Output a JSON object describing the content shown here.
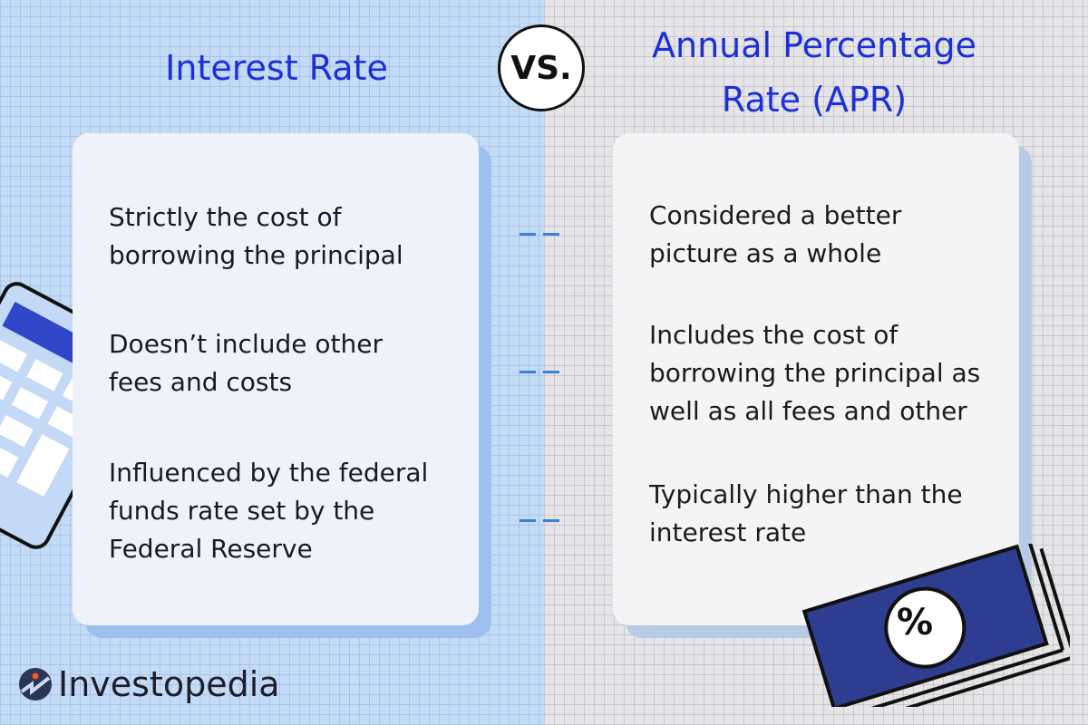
{
  "left": {
    "title": "Interest Rate",
    "points": [
      "Strictly the cost of\nborrowing the principal",
      "Doesn’t include other\nfees and costs",
      "Influenced by the federal\nfunds rate set by the\nFederal Reserve"
    ]
  },
  "vs_label": "VS.",
  "right": {
    "title_line1": "Annual Percentage",
    "title_line2": "Rate (APR)",
    "points": [
      "Considered a better\npicture as a whole",
      "Includes the cost of\nborrowing the principal as\nwell as all fees and other",
      "Typically higher than the\ninterest rate"
    ]
  },
  "calculator_display": "$$$.$$",
  "bill_symbol": "%",
  "brand": "Investopedia",
  "colors": {
    "title": "#1c2fd8",
    "left_bg": "#c4dbf5",
    "right_bg": "#e5e4e7",
    "dash": "#3b7fd6",
    "bill": "#2e3d8f"
  }
}
